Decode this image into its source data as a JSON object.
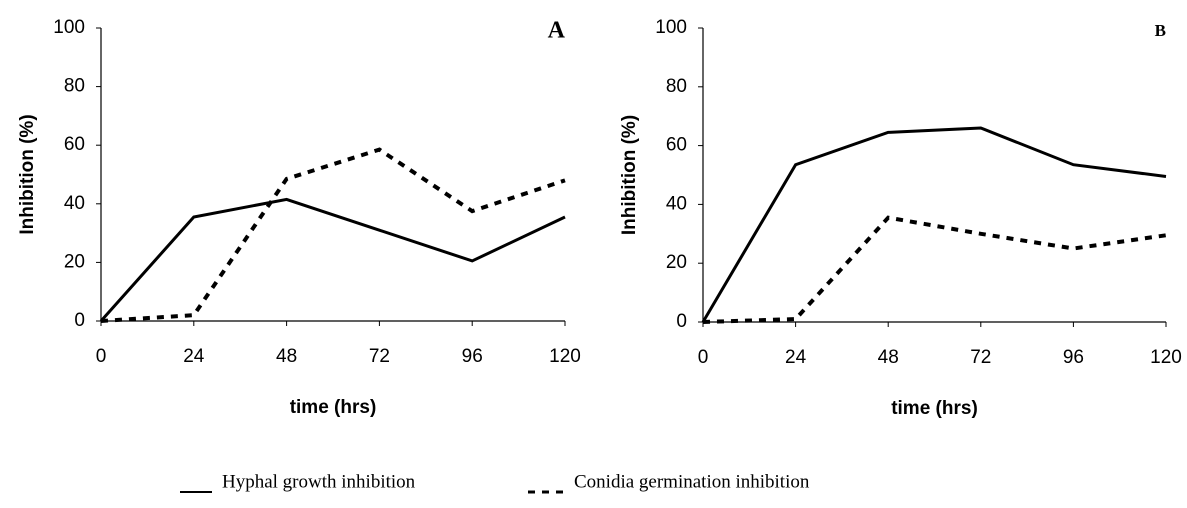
{
  "chart_data": [
    {
      "type": "line",
      "title": "A",
      "xlabel": "time (hrs)",
      "ylabel": "Inhibition (%)",
      "x": [
        0,
        24,
        48,
        72,
        96,
        120
      ],
      "series": [
        {
          "name": "Hyphal growth inhibition",
          "color": "#000000",
          "line_style": "solid",
          "values": [
            0,
            35.5,
            41.5,
            31,
            20.5,
            35.5
          ]
        },
        {
          "name": "Conidia germination inhibition",
          "color": "#000000",
          "line_style": "dashed",
          "values": [
            0,
            2,
            48.5,
            58.5,
            37.5,
            48
          ]
        }
      ],
      "xlim": [
        0,
        120
      ],
      "xticks": [
        0,
        24,
        48,
        72,
        96,
        120
      ],
      "ylim": [
        0,
        100
      ],
      "yticks": [
        0,
        20,
        40,
        60,
        80,
        100
      ],
      "grid": false
    },
    {
      "type": "line",
      "title": "B",
      "xlabel": "time (hrs)",
      "ylabel": "Inhibition (%)",
      "x": [
        0,
        24,
        48,
        72,
        96,
        120
      ],
      "series": [
        {
          "color": "#000000",
          "line_style": "solid",
          "values": [
            0,
            53.5,
            64.5,
            66,
            53.5,
            49.5
          ]
        },
        {
          "color": "#000000",
          "line_style": "dashed",
          "values": [
            0,
            1,
            35.5,
            30,
            25,
            29.5
          ]
        }
      ],
      "xlim": [
        0,
        120
      ],
      "xticks": [
        0,
        24,
        48,
        72,
        96,
        120
      ],
      "ylim": [
        0,
        100
      ],
      "yticks": [
        0,
        20,
        40,
        60,
        80,
        100
      ],
      "grid": false
    }
  ]
}
